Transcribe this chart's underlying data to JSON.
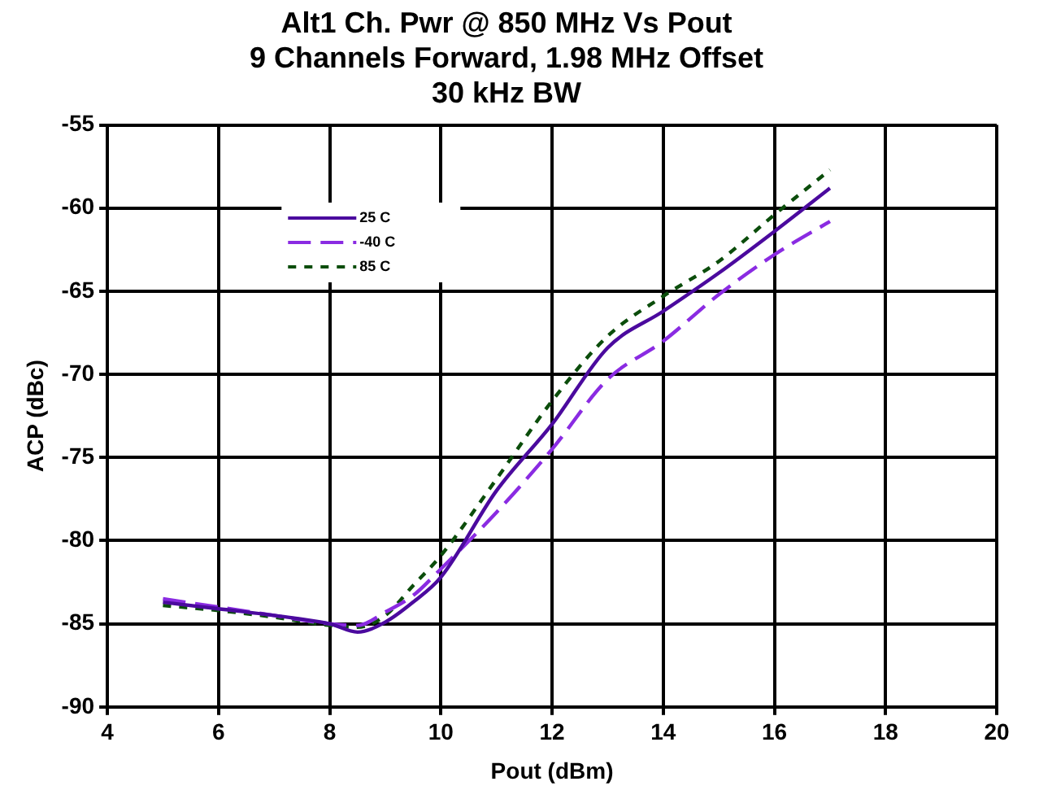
{
  "chart_data": {
    "type": "line",
    "title": "Alt1 Ch. Pwr @ 850 MHz Vs Pout\n9 Channels Forward, 1.98 MHz Offset\n30 kHz BW",
    "xlabel": "Pout (dBm)",
    "ylabel": "ACP (dBc)",
    "x": [
      5,
      6,
      7,
      8,
      8.5,
      9,
      9.5,
      10,
      11,
      12,
      13,
      14,
      15,
      16,
      17
    ],
    "series": [
      {
        "name": "25 C",
        "color": "#4b0a9e",
        "line_style": "solid",
        "values": [
          -83.7,
          -84.1,
          -84.5,
          -85.0,
          -85.5,
          -84.9,
          -83.7,
          -82.2,
          -77.0,
          -73.0,
          -68.4,
          -66.2,
          -63.9,
          -61.4,
          -58.8
        ]
      },
      {
        "name": "-40 C",
        "color": "#8a2be2",
        "line_style": "dashed",
        "values": [
          -83.5,
          -84.0,
          -84.5,
          -85.0,
          -85.1,
          -84.3,
          -83.3,
          -81.7,
          -78.3,
          -74.5,
          -70.3,
          -68.0,
          -65.2,
          -62.8,
          -60.8
        ]
      },
      {
        "name": "85 C",
        "color": "#0b4d0b",
        "line_style": "dotted",
        "values": [
          -83.9,
          -84.2,
          -84.6,
          -85.1,
          -85.2,
          -84.5,
          -82.7,
          -80.9,
          -76.3,
          -71.6,
          -67.7,
          -65.3,
          -63.2,
          -60.4,
          -57.7
        ]
      }
    ],
    "xlim": [
      4,
      20
    ],
    "xticks": [
      4,
      6,
      8,
      10,
      12,
      14,
      16,
      18,
      20
    ],
    "ylim": [
      -90,
      -55
    ],
    "yticks": [
      -55,
      -60,
      -65,
      -70,
      -75,
      -80,
      -85,
      -90
    ],
    "grid": true,
    "legend": "top left",
    "marker": "none"
  }
}
